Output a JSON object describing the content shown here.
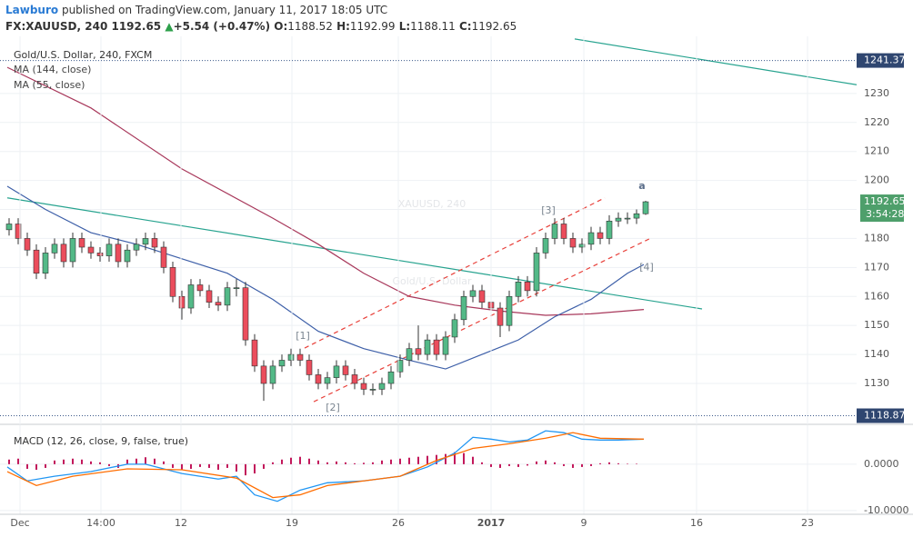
{
  "header": {
    "publisher": "Lawburo",
    "published": "published on TradingView.com, January 11, 2017 18:05 UTC",
    "symbol": "FX:XAUUSD, 240",
    "price": "1192.65",
    "arrow": "▲",
    "change": "+5.54 (+0.47%)",
    "o_label": "O:",
    "o": "1188.52",
    "h_label": "H:",
    "h": "1192.99",
    "l_label": "L:",
    "l": "1188.11",
    "c_label": "C:",
    "c": "1192.65"
  },
  "chart_data": [
    {
      "type": "candlestick",
      "title": "Gold/U.S. Dollar, 240, FXCM",
      "watermark": "XAUUSD, 240",
      "watermark_sub": "Gold/U.S. Dollar",
      "x": [
        1,
        2,
        3,
        4,
        5,
        6,
        7,
        8,
        9,
        10,
        11,
        12,
        13,
        14,
        15,
        16,
        17,
        18,
        19,
        20,
        21,
        22,
        23,
        24,
        25,
        26,
        27,
        28,
        29,
        30,
        31,
        32,
        33,
        34,
        35,
        36,
        37,
        38,
        39,
        40,
        41,
        42,
        43,
        44,
        45,
        46,
        47,
        48,
        49,
        50,
        51,
        52,
        53,
        54,
        55,
        56,
        57,
        58,
        59,
        60,
        61,
        62,
        63,
        64,
        65,
        66,
        67,
        68,
        69,
        70,
        71
      ],
      "open": [
        1183,
        1185,
        1180,
        1176,
        1168,
        1175,
        1178,
        1172,
        1180,
        1177,
        1175,
        1174,
        1178,
        1172,
        1176,
        1178,
        1180,
        1177,
        1170,
        1160,
        1156,
        1164,
        1162,
        1158,
        1157,
        1163,
        1163,
        1145,
        1136,
        1130,
        1136,
        1138,
        1140,
        1138,
        1133,
        1130,
        1132,
        1136,
        1133,
        1130,
        1128,
        1128,
        1130,
        1134,
        1138,
        1142,
        1140,
        1145,
        1140,
        1146,
        1152,
        1160,
        1162,
        1158,
        1156,
        1150,
        1160,
        1165,
        1162,
        1175,
        1180,
        1185,
        1180,
        1177,
        1178,
        1182,
        1180,
        1186,
        1187,
        1187,
        1188.52
      ],
      "high": [
        1187,
        1187,
        1182,
        1178,
        1177,
        1180,
        1180,
        1182,
        1182,
        1179,
        1177,
        1180,
        1180,
        1178,
        1180,
        1182,
        1182,
        1179,
        1172,
        1162,
        1166,
        1166,
        1164,
        1160,
        1165,
        1166,
        1165,
        1147,
        1138,
        1138,
        1140,
        1142,
        1142,
        1140,
        1135,
        1134,
        1138,
        1138,
        1135,
        1132,
        1130,
        1132,
        1136,
        1140,
        1144,
        1150,
        1147,
        1147,
        1148,
        1154,
        1162,
        1164,
        1164,
        1160,
        1158,
        1162,
        1167,
        1167,
        1177,
        1182,
        1187,
        1187,
        1182,
        1180,
        1184,
        1184,
        1188,
        1189,
        1189,
        1190,
        1192.99
      ],
      "low": [
        1181,
        1178,
        1174,
        1166,
        1166,
        1173,
        1170,
        1170,
        1175,
        1173,
        1172,
        1172,
        1170,
        1170,
        1174,
        1176,
        1175,
        1168,
        1158,
        1152,
        1154,
        1160,
        1156,
        1155,
        1155,
        1160,
        1143,
        1134,
        1124,
        1128,
        1134,
        1136,
        1136,
        1131,
        1128,
        1128,
        1130,
        1131,
        1128,
        1126,
        1126,
        1126,
        1128,
        1132,
        1136,
        1138,
        1138,
        1138,
        1138,
        1144,
        1150,
        1158,
        1156,
        1154,
        1146,
        1148,
        1158,
        1160,
        1160,
        1173,
        1178,
        1178,
        1175,
        1175,
        1176,
        1178,
        1178,
        1184,
        1185,
        1185,
        1188.11
      ],
      "close": [
        1185,
        1180,
        1176,
        1168,
        1175,
        1178,
        1172,
        1180,
        1177,
        1175,
        1174,
        1178,
        1172,
        1176,
        1178,
        1180,
        1177,
        1170,
        1160,
        1156,
        1164,
        1162,
        1158,
        1157,
        1163,
        1163,
        1145,
        1136,
        1130,
        1136,
        1138,
        1140,
        1138,
        1133,
        1130,
        1132,
        1136,
        1133,
        1130,
        1128,
        1128,
        1130,
        1134,
        1138,
        1142,
        1140,
        1145,
        1140,
        1146,
        1152,
        1160,
        1162,
        1158,
        1156,
        1150,
        1160,
        1165,
        1162,
        1175,
        1180,
        1185,
        1180,
        1177,
        1178,
        1182,
        1180,
        1186,
        1187,
        1187,
        1188.52,
        1192.65
      ],
      "up_color": "#53b987",
      "down_color": "#eb4d5c",
      "series": [
        {
          "name": "MA (144, close)",
          "color": "#a8385b",
          "x": [
            0.8,
            10,
            20,
            30,
            35,
            40,
            45,
            50,
            55,
            60,
            65,
            70.8
          ],
          "values": [
            1239,
            1225,
            1204,
            1187,
            1178,
            1168,
            1160,
            1157,
            1155,
            1153.5,
            1154,
            1155.5
          ]
        },
        {
          "name": "MA (55, close)",
          "color": "#3d5fa8",
          "x": [
            0.8,
            5,
            10,
            15,
            20,
            25,
            30,
            35,
            40,
            45,
            49,
            53,
            57,
            61,
            65,
            69,
            70.8
          ],
          "values": [
            1198,
            1190,
            1182,
            1178,
            1173,
            1168,
            1159,
            1148,
            1142,
            1138,
            1135,
            1140,
            1145,
            1153,
            1159,
            1168,
            1171
          ]
        }
      ],
      "trendlines": [
        {
          "color": "#27a38f",
          "dashed": false,
          "x": [
            0.8,
            77.2
          ],
          "values": [
            1194,
            1155.7
          ]
        },
        {
          "color": "#27a38f",
          "dashed": false,
          "x": [
            63.2,
            94.2
          ],
          "values": [
            1248.8,
            1233
          ]
        },
        {
          "color": "#e8403a",
          "dashed": true,
          "x": [
            33.5,
            66.5
          ],
          "values": [
            1142.2,
            1194
          ]
        },
        {
          "color": "#e8403a",
          "dashed": true,
          "x": [
            34.5,
            71.5
          ],
          "values": [
            1123.7,
            1180
          ]
        }
      ],
      "levels": [
        {
          "value": 1241.37,
          "label": "1241.37"
        },
        {
          "value": 1118.87,
          "label": "1118.87"
        }
      ],
      "last_price": {
        "value": 1192.65,
        "label": "1192.65",
        "countdown": "3:54:28"
      },
      "annotations": [
        {
          "text": "[1]",
          "x": 33.3,
          "y": 1146.3
        },
        {
          "text": "[2]",
          "x": 36.6,
          "y": 1121.5
        },
        {
          "text": "[3]",
          "x": 60.3,
          "y": 1189.6
        },
        {
          "text": "[4]",
          "x": 71.1,
          "y": 1170
        },
        {
          "text": "a",
          "x": 70.6,
          "y": 1198
        }
      ],
      "xlim": [
        0,
        94.2
      ],
      "xticks": [
        {
          "value": 2.2,
          "label": "Dec"
        },
        {
          "value": 11.1,
          "label": "14:00"
        },
        {
          "value": 19.9,
          "label": "12"
        },
        {
          "value": 32.1,
          "label": "19"
        },
        {
          "value": 43.8,
          "label": "26"
        },
        {
          "value": 54,
          "label": "2017"
        },
        {
          "value": 64.2,
          "label": "9"
        },
        {
          "value": 76.6,
          "label": "16"
        },
        {
          "value": 88.8,
          "label": "23"
        }
      ],
      "ylim": [
        1115.9,
        1249.7
      ],
      "yticks": [
        1130,
        1140,
        1150,
        1160,
        1170,
        1180,
        1190,
        1200,
        1210,
        1220,
        1230
      ],
      "grid": true
    },
    {
      "type": "macd",
      "title": "MACD (12, 26, close, 9, false, true)",
      "series": [
        {
          "name": "MACD",
          "color": "#2196f3",
          "x": [
            0.8,
            3,
            6,
            10,
            14,
            16,
            20,
            24,
            26,
            28,
            30.5,
            33,
            36,
            40,
            44,
            47,
            50,
            52,
            54,
            56,
            58,
            60,
            62,
            64,
            66,
            68,
            70.8
          ],
          "values": [
            -0.6,
            -3.6,
            -2.6,
            -1.6,
            0,
            0,
            -2,
            -3.2,
            -2.6,
            -6.6,
            -8,
            -5.6,
            -4,
            -3.6,
            -2.6,
            -0.6,
            2.4,
            5.8,
            5.4,
            4.8,
            5.2,
            7.2,
            6.8,
            5.4,
            5.2,
            5.2,
            5.4
          ]
        },
        {
          "name": "Signal",
          "color": "#ff6d00",
          "x": [
            0.8,
            4,
            8,
            14,
            20,
            26,
            30,
            33,
            36,
            40,
            44,
            48,
            52,
            56,
            60,
            63,
            66,
            70.8
          ],
          "values": [
            -1.6,
            -4.6,
            -2.6,
            -1,
            -1.2,
            -3,
            -7.2,
            -6.6,
            -4.6,
            -3.6,
            -2.6,
            0.8,
            3.4,
            4.4,
            5.6,
            6.8,
            5.6,
            5.4
          ]
        }
      ],
      "histogram": {
        "color": "#c2185b",
        "x": [
          1,
          2,
          3,
          4,
          5,
          6,
          7,
          8,
          9,
          10,
          11,
          12,
          13,
          14,
          15,
          16,
          17,
          18,
          19,
          20,
          21,
          22,
          23,
          24,
          25,
          26,
          27,
          28,
          29,
          30,
          31,
          32,
          33,
          34,
          35,
          36,
          37,
          38,
          39,
          40,
          41,
          42,
          43,
          44,
          45,
          46,
          47,
          48,
          49,
          50,
          51,
          52,
          53,
          54,
          55,
          56,
          57,
          58,
          59,
          60,
          61,
          62,
          63,
          64,
          65,
          66,
          67,
          68,
          69,
          70,
          71
        ],
        "values": [
          1,
          1.2,
          -1,
          -1.2,
          -0.8,
          0.8,
          1,
          1.2,
          1,
          0.6,
          0.4,
          -0.4,
          -0.8,
          1,
          1.2,
          1.5,
          1.2,
          0.6,
          -0.8,
          -1.2,
          -1,
          -0.6,
          -0.8,
          -1.2,
          -0.8,
          -1.6,
          -2.4,
          -2,
          -1,
          0.4,
          1,
          1.4,
          1.6,
          1.2,
          0.8,
          0.4,
          0.6,
          0.4,
          0.2,
          0.3,
          0.4,
          0.8,
          1,
          1.2,
          1.4,
          1.6,
          1.8,
          2,
          2.2,
          2.6,
          2.4,
          1.6,
          0.4,
          -0.6,
          -0.8,
          -0.4,
          -0.6,
          -0.3,
          0.6,
          0.8,
          0.4,
          -0.4,
          -0.8,
          -0.6,
          -0.4,
          0.2,
          0.4,
          0.2,
          0.1,
          0.1,
          0
        ]
      },
      "xlim": [
        0,
        94.2
      ],
      "ylim": [
        -10.8,
        8.4
      ],
      "yticks": [
        {
          "value": 0,
          "label": "0.0000"
        },
        {
          "value": -10,
          "label": "-10.0000"
        }
      ],
      "grid": true
    }
  ]
}
